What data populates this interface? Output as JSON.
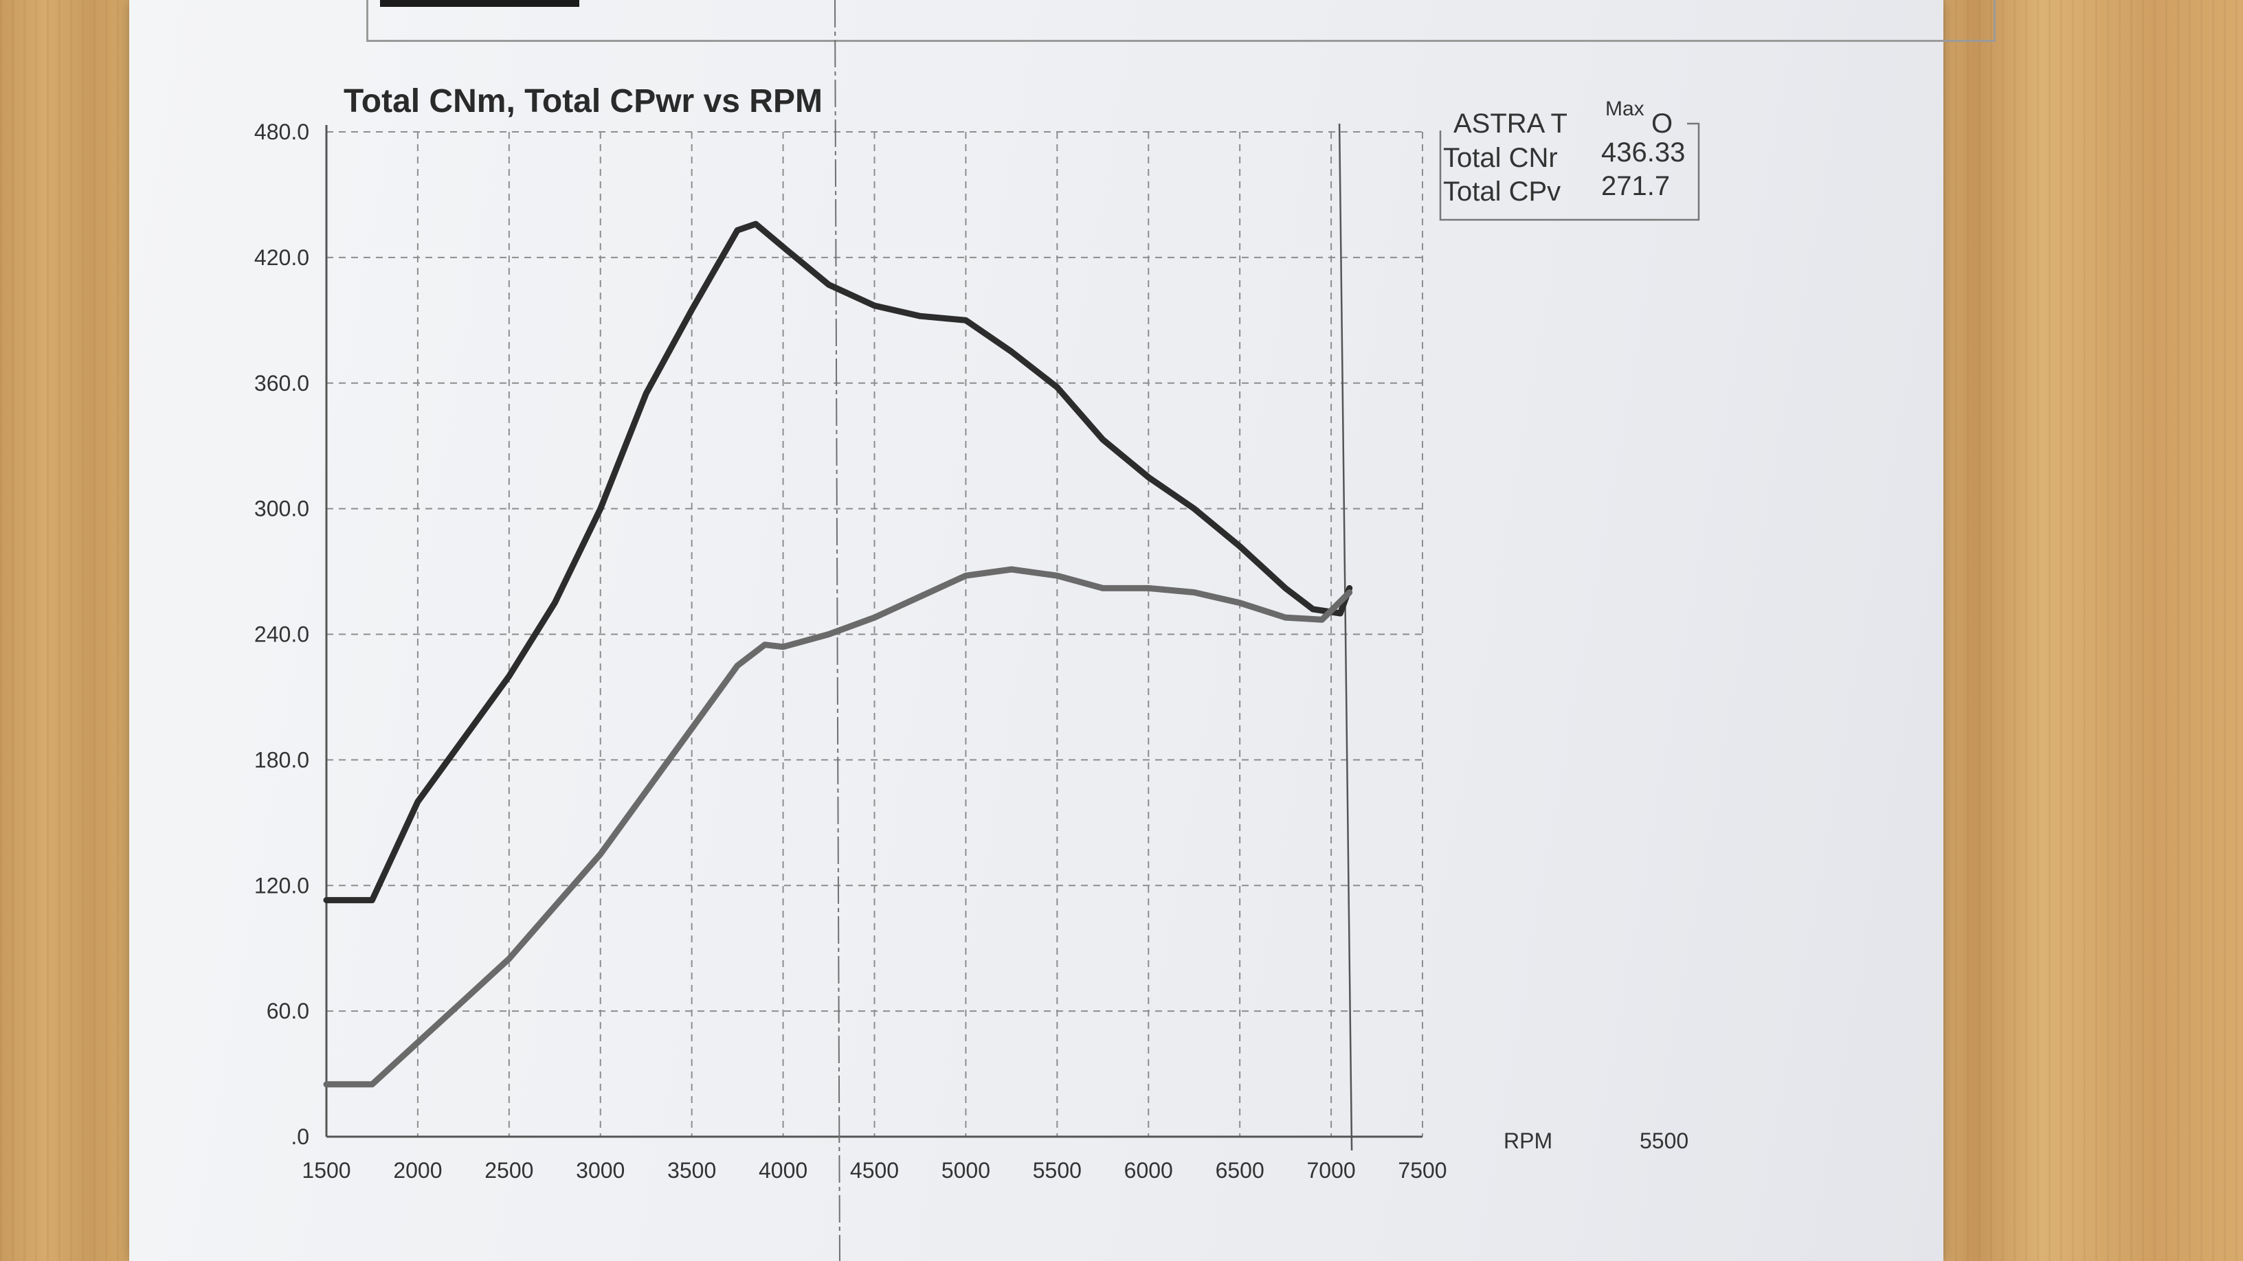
{
  "chart_data": {
    "type": "line",
    "title": "Total CNm, Total CPwr vs RPM",
    "xlabel": "RPM",
    "x_extra_label": "5500",
    "ylabel": "",
    "xlim": [
      1500,
      7500
    ],
    "ylim": [
      0,
      480
    ],
    "x_ticks": [
      "1500",
      "2000",
      "2500",
      "3000",
      "3500",
      "4000",
      "4500",
      "5000",
      "5500",
      "6000",
      "6500",
      "7000",
      "7500"
    ],
    "y_ticks": [
      ".0",
      "60.0",
      "120.0",
      "180.0",
      "240.0",
      "300.0",
      "360.0",
      "420.0",
      "480.0"
    ],
    "grid": true,
    "legend": {
      "title": "ASTRA TURBO",
      "title_visible": "ASTRA T",
      "title_tail": "O",
      "column_header": "Max",
      "placement": "top-right",
      "entries": [
        {
          "label": "Total CNr",
          "value": "436.33"
        },
        {
          "label": "Total CPv",
          "value": "271.7"
        }
      ]
    },
    "series": [
      {
        "name": "Total CNm",
        "color": "#2c2c2c",
        "points": [
          [
            1500,
            113
          ],
          [
            1750,
            113
          ],
          [
            2000,
            160
          ],
          [
            2250,
            190
          ],
          [
            2500,
            220
          ],
          [
            2750,
            255
          ],
          [
            3000,
            300
          ],
          [
            3250,
            355
          ],
          [
            3500,
            395
          ],
          [
            3750,
            433
          ],
          [
            3850,
            436
          ],
          [
            4000,
            425
          ],
          [
            4250,
            407
          ],
          [
            4500,
            397
          ],
          [
            4750,
            392
          ],
          [
            5000,
            390
          ],
          [
            5250,
            375
          ],
          [
            5500,
            358
          ],
          [
            5750,
            333
          ],
          [
            6000,
            315
          ],
          [
            6250,
            300
          ],
          [
            6500,
            282
          ],
          [
            6750,
            262
          ],
          [
            6900,
            252
          ],
          [
            7050,
            250
          ],
          [
            7100,
            262
          ]
        ]
      },
      {
        "name": "Total CPwr",
        "color": "#6a6a6a",
        "points": [
          [
            1500,
            25
          ],
          [
            1750,
            25
          ],
          [
            2000,
            45
          ],
          [
            2250,
            65
          ],
          [
            2500,
            85
          ],
          [
            2750,
            110
          ],
          [
            3000,
            135
          ],
          [
            3250,
            165
          ],
          [
            3500,
            195
          ],
          [
            3750,
            225
          ],
          [
            3900,
            235
          ],
          [
            4000,
            234
          ],
          [
            4250,
            240
          ],
          [
            4500,
            248
          ],
          [
            4750,
            258
          ],
          [
            5000,
            268
          ],
          [
            5250,
            271
          ],
          [
            5500,
            268
          ],
          [
            5750,
            262
          ],
          [
            6000,
            262
          ],
          [
            6250,
            260
          ],
          [
            6500,
            255
          ],
          [
            6750,
            248
          ],
          [
            6950,
            247
          ],
          [
            7100,
            260
          ]
        ]
      }
    ]
  }
}
